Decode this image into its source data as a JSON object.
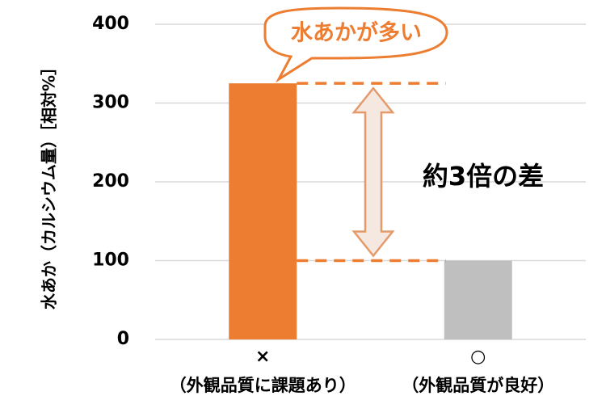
{
  "chart_data": {
    "type": "bar",
    "y_label": "水あか（カルシウム量）［相対%］",
    "categories": [
      "×",
      "○"
    ],
    "category_notes": [
      "（外観品質に課題あり）",
      "（外観品質が良好）"
    ],
    "values": [
      325,
      100
    ],
    "colors": [
      "#ED7D31",
      "#BFBFBF"
    ],
    "ylim": [
      0,
      400
    ],
    "yticks": [
      0,
      100,
      200,
      300,
      400
    ],
    "grid": true,
    "callout": "水あかが多い",
    "annotation": "約3倍の差"
  }
}
